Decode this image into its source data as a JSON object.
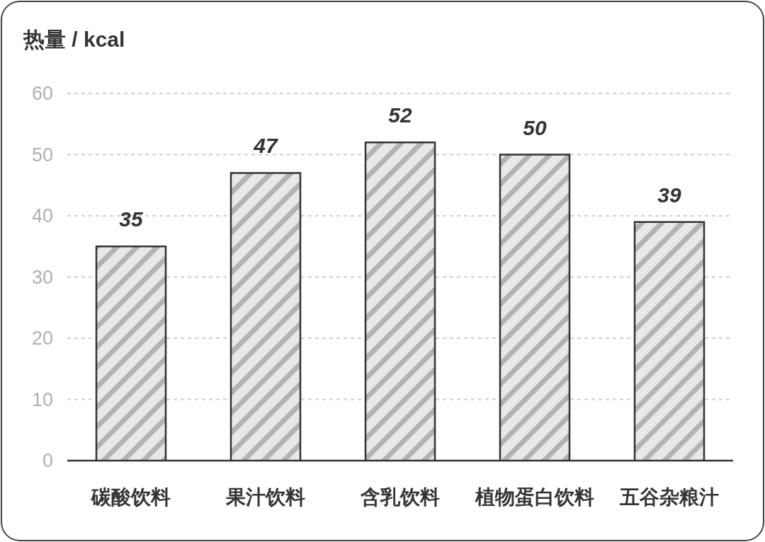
{
  "chart_data": {
    "type": "bar",
    "ylabel": "热量 / kcal",
    "categories": [
      "碳酸饮料",
      "果汁饮料",
      "含乳饮料",
      "植物蛋白饮料",
      "五谷杂粮汁"
    ],
    "values": [
      35,
      47,
      52,
      50,
      39
    ],
    "color": "#e8e8e8",
    "ylim": [
      0,
      60
    ],
    "yticks": [
      0,
      10,
      20,
      30,
      40,
      50,
      60
    ],
    "grid": "y",
    "data_labels": true
  }
}
